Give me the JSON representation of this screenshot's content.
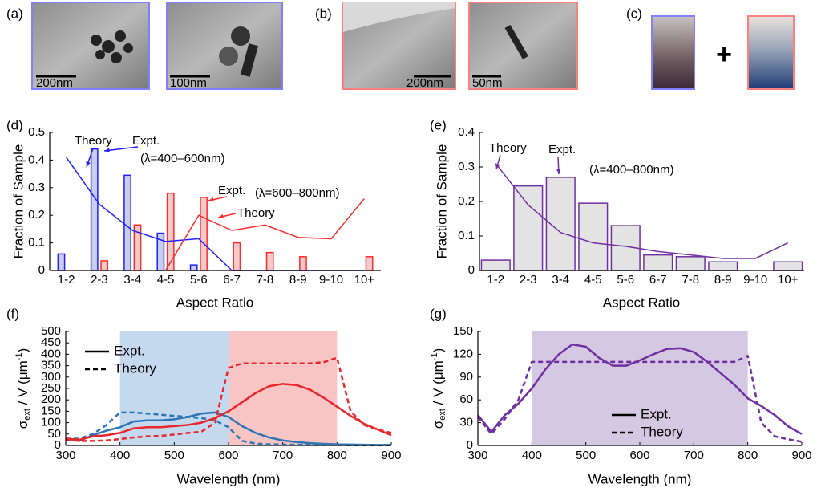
{
  "panels": [
    {
      "label": "(a)",
      "scale_bars": [
        "200nm",
        "100nm"
      ]
    },
    {
      "label": "(b)",
      "scale_bars": [
        "200nm",
        "50nm"
      ]
    },
    {
      "label": "(c)",
      "symbol": "+"
    }
  ],
  "chart_data": [
    {
      "type": "bar",
      "panel_label": "(d)",
      "xlabel": "Aspect Ratio",
      "ylabel": "Fraction of Sample",
      "categories": [
        "1-2",
        "2-3",
        "3-4",
        "4-5",
        "5-6",
        "6-7",
        "7-8",
        "8-9",
        "9-10",
        "10+"
      ],
      "ylim": [
        0,
        0.5
      ],
      "yticks": [
        0,
        0.1,
        0.2,
        0.3,
        0.4,
        0.5
      ],
      "series": [
        {
          "name": "Expt.",
          "kind": "bar",
          "color": "#1f1fff",
          "fill": "#c9cfe8",
          "values": [
            0.06,
            0.44,
            0.345,
            0.135,
            0.02,
            0,
            0,
            0,
            0,
            0
          ]
        },
        {
          "name": "Theory",
          "kind": "line",
          "color": "#1f1fff",
          "values": [
            0.41,
            0.24,
            0.145,
            0.105,
            0.115,
            0,
            0,
            0,
            0,
            0
          ]
        },
        {
          "name": "Expt.",
          "kind": "bar",
          "color": "#ff2a2a",
          "fill": "#f2caca",
          "values": [
            0,
            0.035,
            0.165,
            0.28,
            0.265,
            0.1,
            0.065,
            0.05,
            0,
            0.05
          ]
        },
        {
          "name": "Theory",
          "kind": "line",
          "color": "#ff2a2a",
          "values": [
            null,
            null,
            null,
            0,
            0.2,
            0.145,
            0.165,
            0.12,
            0.115,
            0.26
          ]
        }
      ],
      "annotations": [
        {
          "text": "(λ=400–600nm)",
          "color": "#1f1fff"
        },
        {
          "text": "(λ=600–800nm)",
          "color": "#ff2a2a"
        }
      ]
    },
    {
      "type": "bar",
      "panel_label": "(e)",
      "xlabel": "Aspect Ratio",
      "ylabel": "Fraction of Sample",
      "categories": [
        "1-2",
        "2-3",
        "3-4",
        "4-5",
        "5-6",
        "6-7",
        "7-8",
        "8-9",
        "9-10",
        "10+"
      ],
      "ylim": [
        0,
        0.4
      ],
      "yticks": [
        0,
        0.1,
        0.2,
        0.3,
        0.4
      ],
      "series": [
        {
          "name": "Expt.",
          "kind": "bar",
          "color": "#7030a0",
          "fill": "#e3e3e3",
          "values": [
            0.03,
            0.245,
            0.27,
            0.195,
            0.13,
            0.045,
            0.04,
            0.025,
            0,
            0.025
          ]
        },
        {
          "name": "Theory",
          "kind": "line",
          "color": "#7030a0",
          "values": [
            0.31,
            0.19,
            0.11,
            0.08,
            0.07,
            0.055,
            0.045,
            0.035,
            0.035,
            0.08
          ]
        }
      ],
      "annotations": [
        {
          "text": "(λ=400–800nm)",
          "color": "#7030a0"
        }
      ]
    },
    {
      "type": "line",
      "panel_label": "(f)",
      "xlabel": "Wavelength (nm)",
      "ylabel": {
        "symbol": "σ",
        "sub": "ext",
        "main": " / V (μm",
        "sup": "-1",
        "end": ")"
      },
      "x": [
        300,
        325,
        350,
        375,
        400,
        425,
        450,
        475,
        500,
        525,
        550,
        575,
        600,
        625,
        650,
        675,
        700,
        725,
        750,
        775,
        800,
        825,
        850,
        875,
        900
      ],
      "xlim": [
        300,
        900
      ],
      "xticks": [
        300,
        400,
        500,
        600,
        700,
        800,
        900
      ],
      "ylim": [
        0,
        500
      ],
      "yticks": [
        0,
        50,
        100,
        150,
        200,
        250,
        300,
        350,
        400,
        450,
        500
      ],
      "shaded": [
        {
          "from": 400,
          "to": 600,
          "color": "#c5d9ee"
        },
        {
          "from": 600,
          "to": 800,
          "color": "#f8c4c4"
        }
      ],
      "series": [
        {
          "style": "solid",
          "color": "#2e75b6",
          "values": [
            30,
            20,
            45,
            65,
            80,
            105,
            110,
            110,
            115,
            125,
            140,
            145,
            125,
            85,
            55,
            35,
            22,
            15,
            10,
            7,
            5,
            4,
            3,
            2,
            2
          ]
        },
        {
          "style": "dashed",
          "color": "#2e75b6",
          "values": [
            30,
            30,
            50,
            90,
            145,
            145,
            140,
            135,
            130,
            125,
            120,
            110,
            80,
            20,
            8,
            5,
            4,
            3,
            2,
            2,
            2,
            1,
            1,
            1,
            1
          ]
        },
        {
          "style": "solid",
          "color": "#e8262b",
          "values": [
            30,
            25,
            40,
            45,
            55,
            75,
            80,
            80,
            85,
            90,
            100,
            120,
            150,
            190,
            230,
            260,
            270,
            265,
            245,
            210,
            170,
            130,
            95,
            70,
            45
          ]
        },
        {
          "style": "dashed",
          "color": "#e8262b",
          "values": [
            25,
            20,
            20,
            22,
            28,
            35,
            40,
            42,
            48,
            55,
            60,
            100,
            340,
            360,
            360,
            360,
            360,
            360,
            360,
            365,
            385,
            150,
            90,
            70,
            55
          ]
        }
      ],
      "legend": {
        "position": "upper left",
        "entries": [
          {
            "name": "Expt.",
            "style": "solid"
          },
          {
            "name": "Theory",
            "style": "dashed"
          }
        ]
      }
    },
    {
      "type": "line",
      "panel_label": "(g)",
      "xlabel": "Wavelength (nm)",
      "ylabel": {
        "symbol": "σ",
        "sub": "ext",
        "main": " / V (μm",
        "sup": "-1",
        "end": ")"
      },
      "x": [
        300,
        325,
        350,
        375,
        400,
        425,
        450,
        475,
        500,
        525,
        550,
        575,
        600,
        625,
        650,
        675,
        700,
        725,
        750,
        775,
        800,
        825,
        850,
        875,
        900
      ],
      "xlim": [
        300,
        900
      ],
      "xticks": [
        300,
        400,
        500,
        600,
        700,
        800,
        900
      ],
      "ylim": [
        0,
        150
      ],
      "yticks": [
        0,
        30,
        60,
        90,
        120,
        150
      ],
      "shaded": [
        {
          "from": 400,
          "to": 800,
          "color": "#d5c8e3"
        }
      ],
      "series": [
        {
          "style": "solid",
          "color": "#7030a0",
          "values": [
            40,
            18,
            40,
            55,
            75,
            100,
            120,
            133,
            130,
            115,
            105,
            105,
            112,
            120,
            127,
            128,
            123,
            110,
            95,
            80,
            62,
            52,
            40,
            25,
            15
          ]
        },
        {
          "style": "dashed",
          "color": "#7030a0",
          "values": [
            38,
            15,
            35,
            60,
            110,
            110,
            110,
            110,
            110,
            110,
            110,
            110,
            110,
            110,
            110,
            110,
            110,
            110,
            110,
            110,
            118,
            30,
            12,
            8,
            5
          ]
        }
      ],
      "legend": {
        "position": "lower center",
        "entries": [
          {
            "name": "Expt.",
            "style": "solid"
          },
          {
            "name": "Theory",
            "style": "dashed"
          }
        ]
      }
    }
  ]
}
